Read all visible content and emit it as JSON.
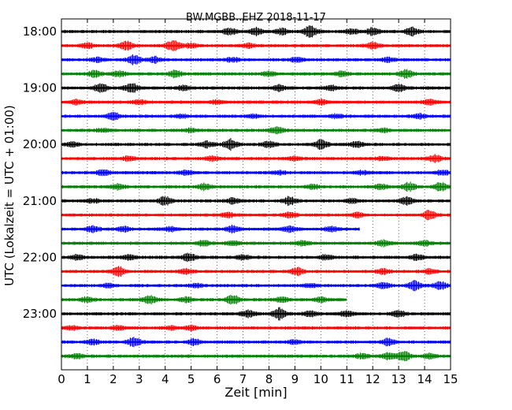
{
  "chart_data": {
    "type": "line",
    "title": "BW.MGBB..EHZ 2018-11-17",
    "xlabel": "Zeit  [min]",
    "ylabel": "UTC (Lokalzeit = UTC + 01:00)",
    "xlim": [
      0,
      15
    ],
    "x_ticks": [
      "0",
      "1",
      "2",
      "3",
      "4",
      "5",
      "6",
      "7",
      "8",
      "9",
      "10",
      "11",
      "12",
      "13",
      "14",
      "15"
    ],
    "hour_labels": [
      {
        "label": "18:00",
        "row": 0
      },
      {
        "label": "19:00",
        "row": 4
      },
      {
        "label": "20:00",
        "row": 8
      },
      {
        "label": "21:00",
        "row": 12
      },
      {
        "label": "22:00",
        "row": 16
      },
      {
        "label": "23:00",
        "row": 20
      }
    ],
    "row_count": 24,
    "row_colors": [
      "#000000",
      "#ff0000",
      "#0000ff",
      "#008000"
    ],
    "rows": [
      {
        "start_min": "18:00",
        "end_min": 15,
        "activity": [
          [
            6.5,
            0.6
          ],
          [
            7.5,
            0.6
          ],
          [
            8.5,
            0.5
          ],
          [
            9.6,
            1.0
          ],
          [
            11.2,
            0.5
          ],
          [
            12.0,
            0.6
          ],
          [
            13.5,
            0.7
          ]
        ]
      },
      {
        "start_min": "18:15",
        "end_min": 15,
        "activity": [
          [
            1.0,
            0.4
          ],
          [
            2.5,
            0.7
          ],
          [
            4.3,
            1.0
          ],
          [
            5.0,
            0.4
          ],
          [
            7.2,
            0.4
          ],
          [
            12.0,
            0.5
          ]
        ]
      },
      {
        "start_min": "18:30",
        "end_min": 15,
        "activity": [
          [
            1.4,
            0.4
          ],
          [
            2.8,
            0.8
          ],
          [
            3.6,
            0.5
          ],
          [
            6.6,
            0.4
          ],
          [
            9.1,
            0.4
          ],
          [
            12.6,
            0.4
          ]
        ]
      },
      {
        "start_min": "18:45",
        "end_min": 15,
        "activity": [
          [
            1.3,
            0.6
          ],
          [
            2.2,
            0.5
          ],
          [
            4.4,
            0.6
          ],
          [
            8.0,
            0.4
          ],
          [
            10.8,
            0.4
          ],
          [
            13.3,
            0.7
          ]
        ]
      },
      {
        "start_min": "19:00",
        "end_min": 15,
        "activity": [
          [
            1.5,
            0.8
          ],
          [
            2.7,
            0.9
          ],
          [
            4.7,
            0.4
          ],
          [
            8.4,
            0.5
          ],
          [
            10.4,
            0.4
          ],
          [
            13.0,
            0.6
          ]
        ]
      },
      {
        "start_min": "19:15",
        "end_min": 15,
        "activity": [
          [
            0.6,
            0.4
          ],
          [
            3.0,
            0.3
          ],
          [
            6.0,
            0.3
          ],
          [
            10.0,
            0.4
          ],
          [
            14.2,
            0.4
          ]
        ]
      },
      {
        "start_min": "19:30",
        "end_min": 15,
        "activity": [
          [
            2.0,
            0.6
          ],
          [
            4.6,
            0.3
          ],
          [
            7.4,
            0.3
          ],
          [
            10.6,
            0.3
          ],
          [
            13.8,
            0.4
          ]
        ]
      },
      {
        "start_min": "19:45",
        "end_min": 15,
        "activity": [
          [
            1.6,
            0.3
          ],
          [
            5.0,
            0.3
          ],
          [
            8.3,
            0.6
          ],
          [
            12.4,
            0.3
          ]
        ]
      },
      {
        "start_min": "20:00",
        "end_min": 15,
        "activity": [
          [
            0.4,
            0.4
          ],
          [
            5.6,
            0.5
          ],
          [
            6.5,
            0.9
          ],
          [
            8.0,
            0.6
          ],
          [
            10.0,
            0.8
          ],
          [
            11.4,
            0.5
          ]
        ]
      },
      {
        "start_min": "20:15",
        "end_min": 15,
        "activity": [
          [
            2.6,
            0.4
          ],
          [
            5.8,
            0.4
          ],
          [
            9.0,
            0.3
          ],
          [
            12.4,
            0.3
          ],
          [
            14.4,
            0.6
          ]
        ]
      },
      {
        "start_min": "20:30",
        "end_min": 15,
        "activity": [
          [
            1.6,
            0.5
          ],
          [
            4.8,
            0.4
          ],
          [
            8.4,
            0.3
          ],
          [
            11.6,
            0.3
          ],
          [
            14.7,
            0.4
          ]
        ]
      },
      {
        "start_min": "20:45",
        "end_min": 15,
        "activity": [
          [
            2.2,
            0.5
          ],
          [
            5.5,
            0.5
          ],
          [
            9.7,
            0.4
          ],
          [
            12.3,
            0.4
          ],
          [
            13.4,
            0.7
          ],
          [
            14.6,
            0.7
          ]
        ]
      },
      {
        "start_min": "21:00",
        "end_min": 15,
        "activity": [
          [
            1.2,
            0.3
          ],
          [
            4.0,
            0.7
          ],
          [
            6.6,
            0.5
          ],
          [
            8.8,
            0.7
          ],
          [
            11.2,
            0.4
          ],
          [
            13.3,
            0.6
          ]
        ]
      },
      {
        "start_min": "21:15",
        "end_min": 15,
        "activity": [
          [
            6.4,
            0.4
          ],
          [
            8.8,
            0.4
          ],
          [
            11.4,
            0.4
          ],
          [
            14.2,
            0.8
          ]
        ]
      },
      {
        "start_min": "21:30",
        "end_min": 11.5,
        "activity": [
          [
            1.2,
            0.5
          ],
          [
            2.4,
            0.4
          ],
          [
            4.2,
            0.4
          ],
          [
            6.6,
            0.6
          ],
          [
            8.8,
            0.5
          ],
          [
            10.4,
            0.4
          ]
        ]
      },
      {
        "start_min": "21:45",
        "end_min": 15,
        "activity": [
          [
            5.5,
            0.5
          ],
          [
            6.6,
            0.4
          ],
          [
            9.3,
            0.4
          ],
          [
            12.4,
            0.5
          ],
          [
            14.0,
            0.4
          ]
        ]
      },
      {
        "start_min": "22:00",
        "end_min": 15,
        "activity": [
          [
            0.6,
            0.4
          ],
          [
            2.6,
            0.4
          ],
          [
            4.9,
            0.7
          ],
          [
            7.0,
            0.4
          ],
          [
            10.2,
            0.4
          ],
          [
            13.7,
            0.5
          ]
        ]
      },
      {
        "start_min": "22:15",
        "end_min": 15,
        "activity": [
          [
            2.2,
            0.8
          ],
          [
            4.8,
            0.4
          ],
          [
            9.1,
            0.6
          ],
          [
            12.4,
            0.4
          ],
          [
            14.2,
            0.4
          ]
        ]
      },
      {
        "start_min": "22:30",
        "end_min": 15,
        "activity": [
          [
            1.8,
            0.3
          ],
          [
            5.2,
            0.3
          ],
          [
            9.6,
            0.3
          ],
          [
            12.4,
            0.5
          ],
          [
            13.6,
            0.8
          ],
          [
            14.6,
            0.6
          ]
        ]
      },
      {
        "start_min": "22:45",
        "end_min": 11,
        "activity": [
          [
            1.0,
            0.4
          ],
          [
            3.4,
            0.7
          ],
          [
            4.8,
            0.4
          ],
          [
            6.6,
            0.8
          ],
          [
            8.5,
            0.4
          ],
          [
            10.0,
            0.4
          ]
        ]
      },
      {
        "start_min": "23:00",
        "end_min": 15,
        "activity": [
          [
            7.2,
            0.6
          ],
          [
            8.4,
            1.0
          ],
          [
            9.6,
            0.5
          ],
          [
            11.0,
            0.5
          ],
          [
            13.0,
            0.5
          ]
        ]
      },
      {
        "start_min": "23:15",
        "end_min": 15,
        "activity": [
          [
            0.4,
            0.3
          ],
          [
            2.2,
            0.4
          ],
          [
            4.2,
            0.3
          ],
          [
            5.0,
            0.4
          ]
        ]
      },
      {
        "start_min": "23:30",
        "end_min": 15,
        "activity": [
          [
            1.2,
            0.4
          ],
          [
            2.8,
            0.8
          ],
          [
            5.1,
            0.5
          ],
          [
            9.0,
            0.3
          ],
          [
            12.6,
            0.6
          ]
        ]
      },
      {
        "start_min": "23:45",
        "end_min": 15,
        "activity": [
          [
            0.6,
            0.4
          ],
          [
            11.6,
            0.4
          ],
          [
            12.6,
            0.6
          ],
          [
            13.2,
            0.8
          ],
          [
            14.2,
            0.4
          ]
        ]
      }
    ]
  }
}
